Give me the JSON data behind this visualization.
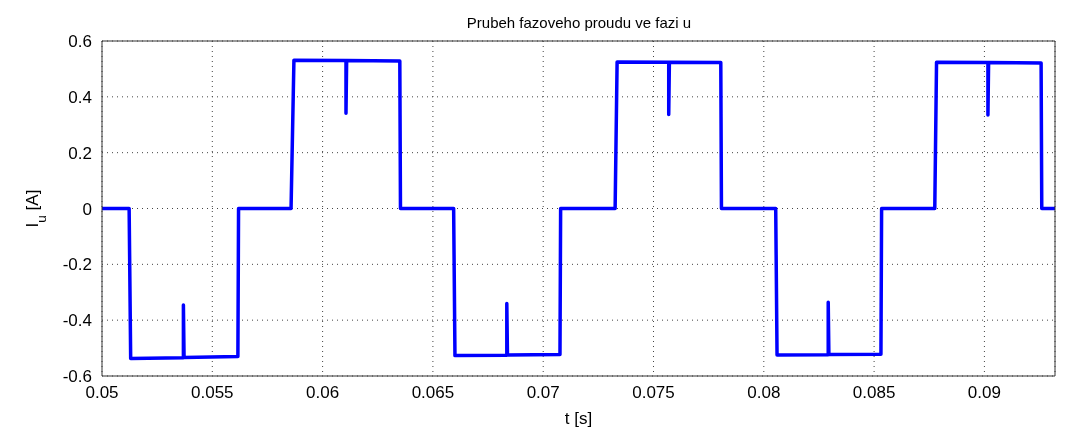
{
  "chart_data": {
    "type": "line",
    "title": "Prubeh fazoveho proudu ve fazi u",
    "xlabel": "t [s]",
    "ylabel": "I$_{u}$ [A]",
    "x": [
      0.05,
      0.05123,
      0.0513,
      0.05369,
      0.05369,
      0.05372,
      0.05616,
      0.05619,
      0.05857,
      0.0587,
      0.06106,
      0.06106,
      0.06109,
      0.0635,
      0.06353,
      0.06594,
      0.066,
      0.06835,
      0.06835,
      0.06838,
      0.07076,
      0.07079,
      0.07326,
      0.07335,
      0.07569,
      0.07569,
      0.07572,
      0.07805,
      0.07808,
      0.08054,
      0.0806,
      0.08292,
      0.08292,
      0.08295,
      0.08531,
      0.08534,
      0.08775,
      0.08783,
      0.09016,
      0.09016,
      0.09019,
      0.09257,
      0.0926,
      0.0932
    ],
    "series": [
      {
        "color": "#0000ff",
        "values": [
          0,
          0,
          -0.537,
          -0.535,
          -0.346,
          -0.534,
          -0.53,
          0,
          0,
          0.531,
          0.53,
          0.341,
          0.53,
          0.528,
          0,
          0,
          -0.527,
          -0.526,
          -0.34,
          -0.525,
          -0.523,
          0,
          0,
          0.525,
          0.524,
          0.337,
          0.524,
          0.523,
          0,
          0,
          -0.525,
          -0.524,
          -0.336,
          -0.523,
          -0.522,
          0,
          0,
          0.524,
          0.523,
          0.335,
          0.523,
          0.521,
          0,
          0
        ]
      }
    ],
    "xlim": [
      0.05,
      0.0932
    ],
    "ylim": [
      -0.6,
      0.6
    ],
    "xticks": [
      0.05,
      0.055,
      0.06,
      0.065,
      0.07,
      0.075,
      0.08,
      0.085,
      0.09
    ],
    "yticks": [
      -0.6,
      -0.4,
      -0.2,
      0,
      0.2,
      0.4,
      0.6
    ],
    "grid": true,
    "legend": false,
    "marker": "none",
    "line_style": "solid"
  }
}
